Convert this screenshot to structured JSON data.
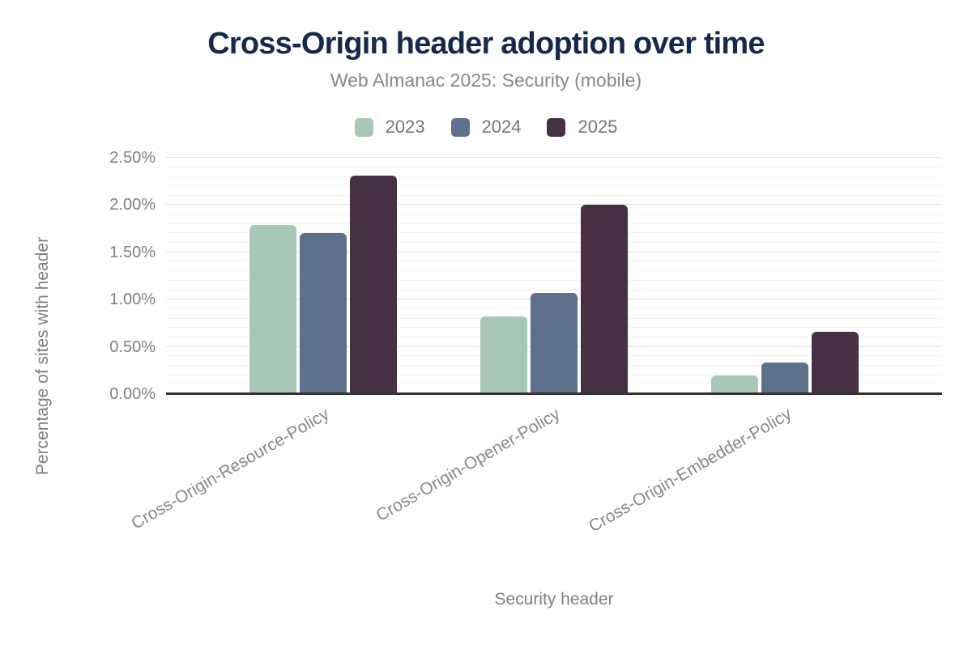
{
  "chart_data": {
    "type": "bar",
    "title": "Cross-Origin header adoption over time",
    "subtitle": "Web Almanac 2025: Security (mobile)",
    "xlabel": "Security header",
    "ylabel": "Percentage of sites with header",
    "categories": [
      "Cross-Origin-Resource-Policy",
      "Cross-Origin-Opener-Policy",
      "Cross-Origin-Embedder-Policy"
    ],
    "series": [
      {
        "name": "2023",
        "color": "#a7c8b7",
        "values": [
          1.79,
          0.82,
          0.2
        ]
      },
      {
        "name": "2024",
        "color": "#5e708d",
        "values": [
          1.7,
          1.07,
          0.33
        ]
      },
      {
        "name": "2025",
        "color": "#473046",
        "values": [
          2.31,
          2.0,
          0.66
        ]
      }
    ],
    "ylim": [
      0,
      2.5
    ],
    "yticks": [
      0,
      0.5,
      1,
      1.5,
      2,
      2.5
    ],
    "ytick_labels": [
      "0.00%",
      "0.50%",
      "1.00%",
      "1.50%",
      "2.00%",
      "2.50%"
    ],
    "minor_grid_step": 0.1,
    "major_grid_step": 0.5,
    "grid": true,
    "legend_position": "top",
    "legend_labels": [
      "2023",
      "2024",
      "2025"
    ]
  },
  "styles": {
    "background": "#ffffff",
    "title_color": "#16294a",
    "subtitle_color": "#85888b",
    "axis_text_color": "#7c7f82",
    "category_text_color": "#85888b",
    "axis_line_color": "#333333",
    "major_grid_color": "#e2e2e2",
    "minor_grid_color": "#f3f3f3"
  }
}
